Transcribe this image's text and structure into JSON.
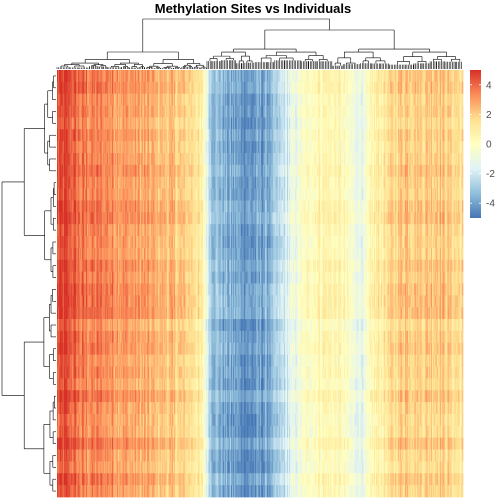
{
  "chart_data": {
    "type": "heatmap",
    "title": "Methylation Sites vs Individuals",
    "xlabel": "",
    "ylabel": "",
    "n_rows": 36,
    "n_cols": 420,
    "color_scale": {
      "min": -5.0,
      "max": 5.0,
      "ticks": [
        4,
        2,
        0,
        -2,
        -4
      ],
      "tick_labels": [
        "4",
        "2",
        "0",
        "-2",
        "-4"
      ],
      "colors": [
        "#4575b4",
        "#91bfdb",
        "#e0f3f8",
        "#ffffbf",
        "#fee090",
        "#fc8d59",
        "#d73027"
      ]
    },
    "column_profile": {
      "description_free": true,
      "x": [
        0,
        0.02,
        0.06,
        0.12,
        0.2,
        0.27,
        0.34,
        0.36,
        0.38,
        0.42,
        0.48,
        0.53,
        0.57,
        0.6,
        0.63,
        0.66,
        0.7,
        0.73,
        0.76,
        0.78,
        0.8,
        0.83,
        0.86,
        0.9,
        0.94,
        0.98,
        1.0
      ],
      "value": [
        4.2,
        4.5,
        3.6,
        3.4,
        2.8,
        2.3,
        1.6,
        0.2,
        -3.0,
        -3.8,
        -4.3,
        -3.6,
        -1.6,
        -0.6,
        0.3,
        0.6,
        0.3,
        -0.8,
        -1.1,
        0.6,
        1.0,
        1.7,
        2.4,
        2.0,
        2.3,
        1.7,
        1.5
      ]
    },
    "dendrogram": {
      "columns": true,
      "rows": true
    },
    "legend_position": "right"
  }
}
